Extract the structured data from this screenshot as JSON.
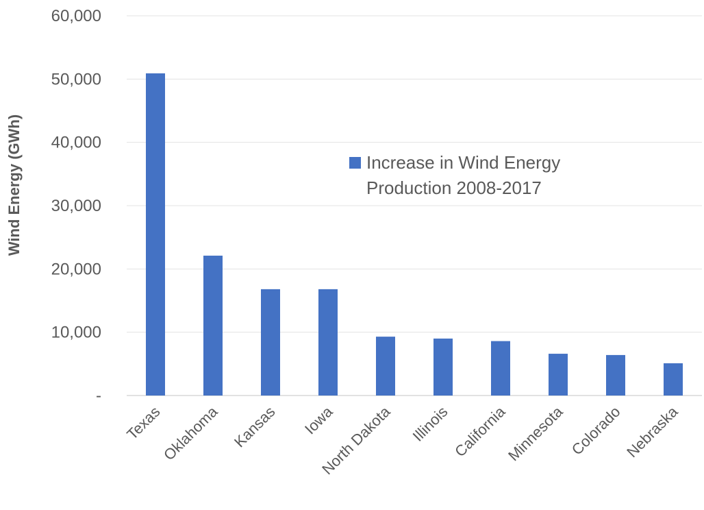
{
  "chart_data": {
    "type": "bar",
    "title": "",
    "xlabel": "",
    "ylabel": "Wind Energy (GWh)",
    "categories": [
      "Texas",
      "Oklahoma",
      "Kansas",
      "Iowa",
      "North Dakota",
      "Illinois",
      "California",
      "Minnesota",
      "Colorado",
      "Nebraska"
    ],
    "series": [
      {
        "name": "Increase in Wind Energy Production 2008-2017",
        "color": "#4472c4",
        "values": [
          50900,
          22100,
          16800,
          16800,
          9300,
          9000,
          8600,
          6600,
          6400,
          5100
        ]
      }
    ],
    "ylim": [
      0,
      60000
    ],
    "yticks": [
      0,
      10000,
      20000,
      30000,
      40000,
      50000,
      60000
    ],
    "ytick_labels": [
      "-",
      "10,000",
      "20,000",
      "30,000",
      "40,000",
      "50,000",
      "60,000"
    ],
    "grid": true,
    "legend_position": "center-right",
    "legend_lines": [
      "Increase in Wind Energy",
      "Production 2008-2017"
    ]
  }
}
